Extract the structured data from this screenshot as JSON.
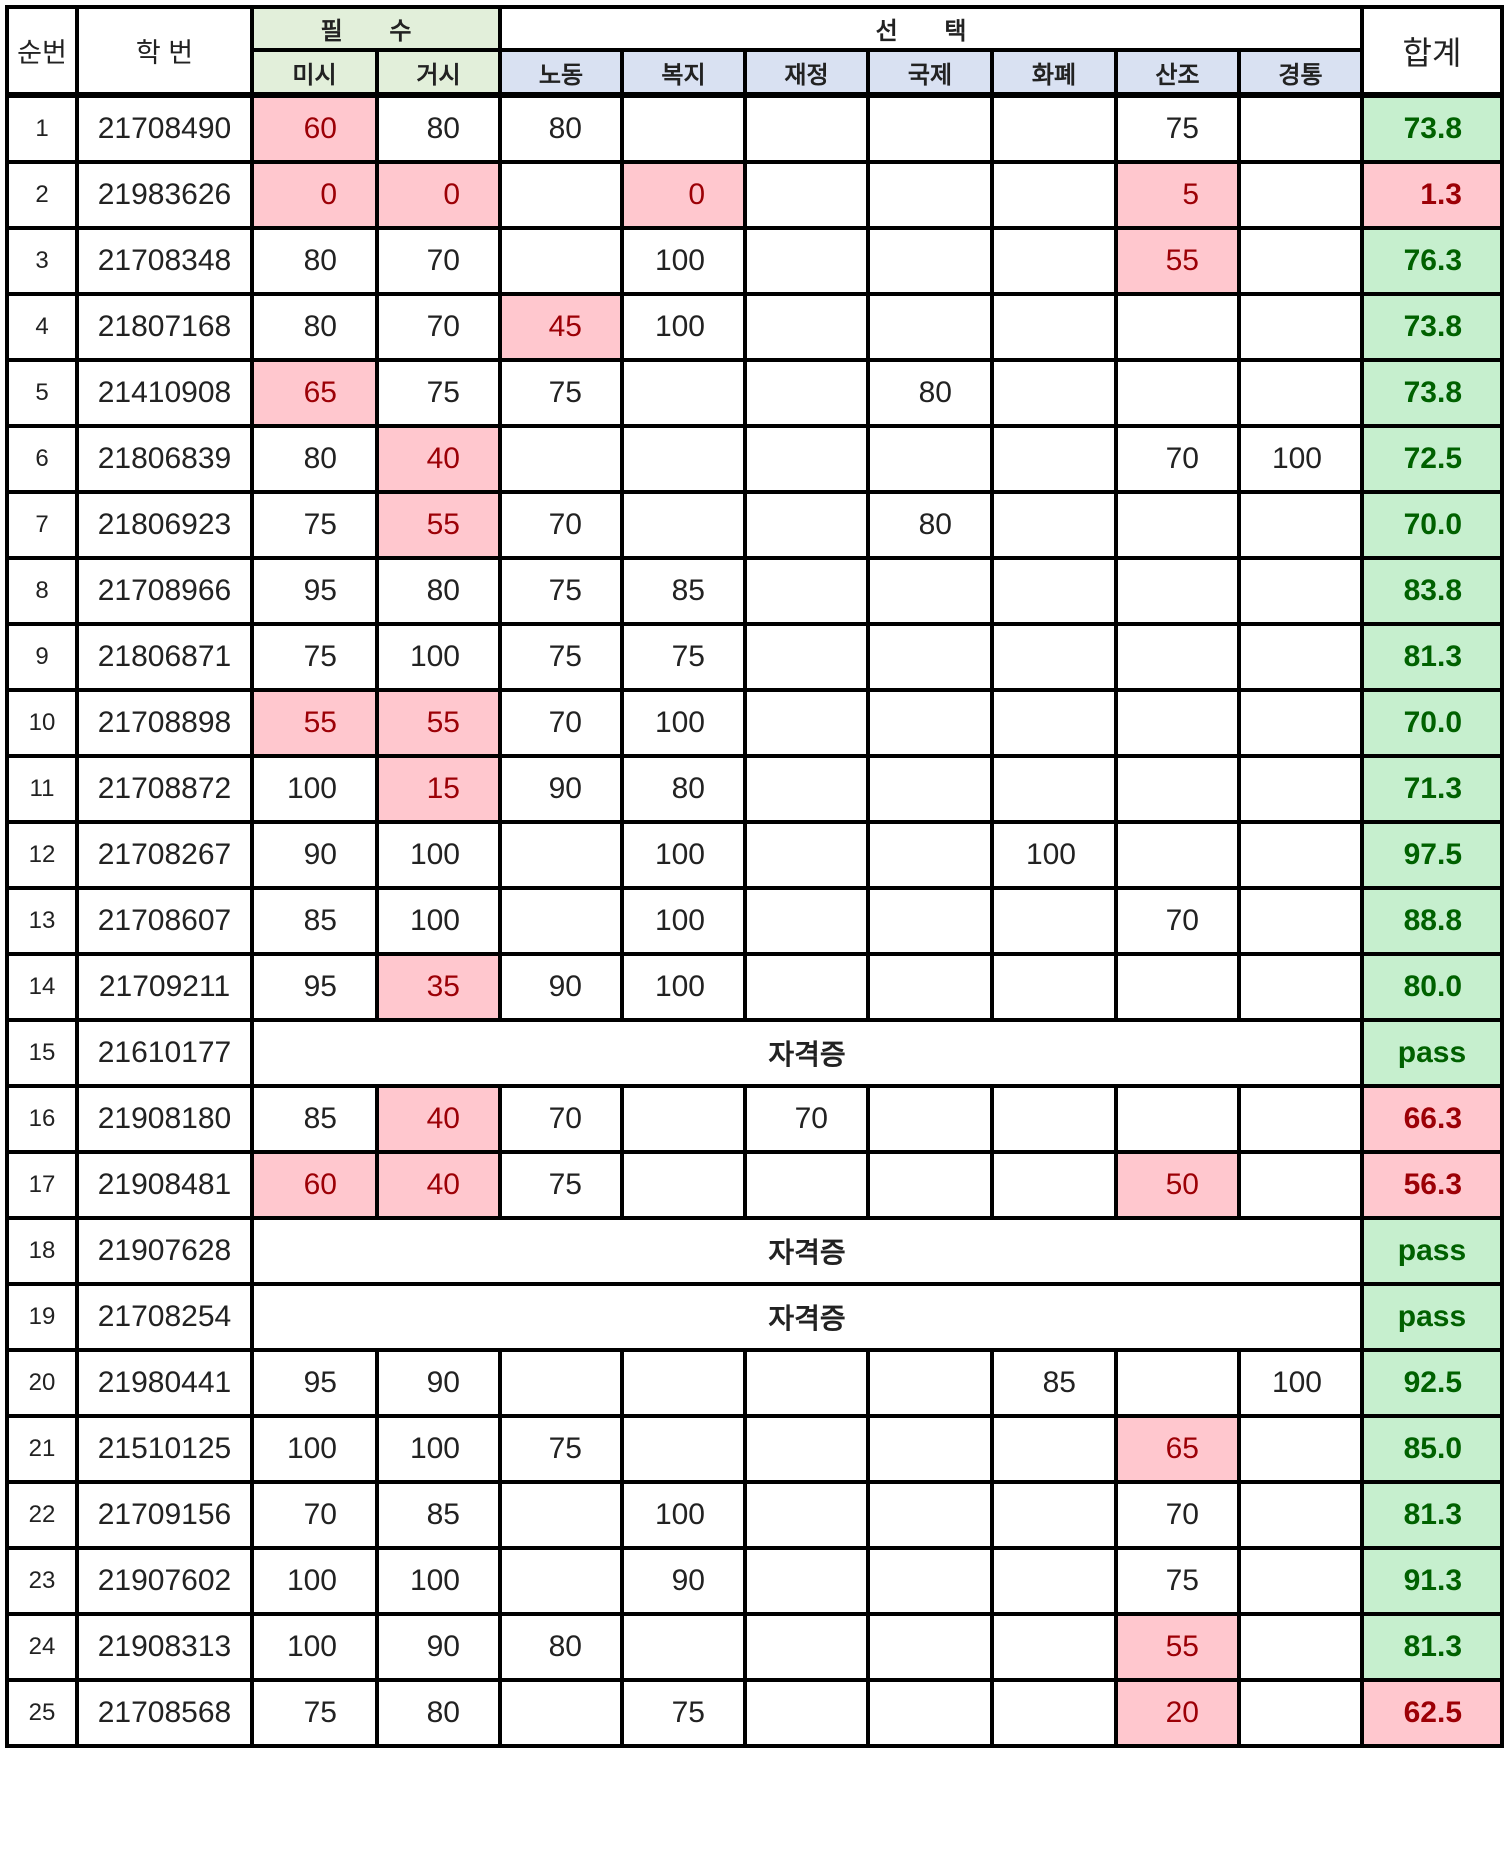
{
  "headers": {
    "no": "순번",
    "student_id": "학 번",
    "required_group": "필 수",
    "elective_group": "선 택",
    "total": "합계",
    "required": [
      "미시",
      "거시"
    ],
    "elective": [
      "노동",
      "복지",
      "재정",
      "국제",
      "화폐",
      "산조",
      "경통"
    ]
  },
  "colors": {
    "header_required": "#e2efda",
    "header_elective": "#d9e1f2",
    "low_bg": "#ffc7ce",
    "low_text": "#9c0006",
    "good_bg": "#c6efce",
    "good_text": "#006100"
  },
  "rows": [
    {
      "no": "1",
      "id": "21708490",
      "scores": [
        "60",
        "80",
        "80",
        "",
        "",
        "",
        "",
        "75",
        ""
      ],
      "low": [
        0
      ],
      "total": "73.8",
      "status": "ok"
    },
    {
      "no": "2",
      "id": "21983626",
      "scores": [
        "0",
        "0",
        "",
        "0",
        "",
        "",
        "",
        "5",
        ""
      ],
      "low": [
        0,
        1,
        3,
        7
      ],
      "total": "1.3",
      "status": "fail"
    },
    {
      "no": "3",
      "id": "21708348",
      "scores": [
        "80",
        "70",
        "",
        "100",
        "",
        "",
        "",
        "55",
        ""
      ],
      "low": [
        7
      ],
      "total": "76.3",
      "status": "ok"
    },
    {
      "no": "4",
      "id": "21807168",
      "scores": [
        "80",
        "70",
        "45",
        "100",
        "",
        "",
        "",
        "",
        ""
      ],
      "low": [
        2
      ],
      "total": "73.8",
      "status": "ok"
    },
    {
      "no": "5",
      "id": "21410908",
      "scores": [
        "65",
        "75",
        "75",
        "",
        "",
        "80",
        "",
        "",
        ""
      ],
      "low": [
        0
      ],
      "total": "73.8",
      "status": "ok"
    },
    {
      "no": "6",
      "id": "21806839",
      "scores": [
        "80",
        "40",
        "",
        "",
        "",
        "",
        "",
        "70",
        "100"
      ],
      "low": [
        1
      ],
      "total": "72.5",
      "status": "ok"
    },
    {
      "no": "7",
      "id": "21806923",
      "scores": [
        "75",
        "55",
        "70",
        "",
        "",
        "80",
        "",
        "",
        ""
      ],
      "low": [
        1
      ],
      "total": "70.0",
      "status": "ok"
    },
    {
      "no": "8",
      "id": "21708966",
      "scores": [
        "95",
        "80",
        "75",
        "85",
        "",
        "",
        "",
        "",
        ""
      ],
      "low": [],
      "total": "83.8",
      "status": "ok"
    },
    {
      "no": "9",
      "id": "21806871",
      "scores": [
        "75",
        "100",
        "75",
        "75",
        "",
        "",
        "",
        "",
        ""
      ],
      "low": [],
      "total": "81.3",
      "status": "ok"
    },
    {
      "no": "10",
      "id": "21708898",
      "scores": [
        "55",
        "55",
        "70",
        "100",
        "",
        "",
        "",
        "",
        ""
      ],
      "low": [
        0,
        1
      ],
      "total": "70.0",
      "status": "ok"
    },
    {
      "no": "11",
      "id": "21708872",
      "scores": [
        "100",
        "15",
        "90",
        "80",
        "",
        "",
        "",
        "",
        ""
      ],
      "low": [
        1
      ],
      "total": "71.3",
      "status": "ok"
    },
    {
      "no": "12",
      "id": "21708267",
      "scores": [
        "90",
        "100",
        "",
        "100",
        "",
        "",
        "100",
        "",
        ""
      ],
      "low": [],
      "total": "97.5",
      "status": "ok"
    },
    {
      "no": "13",
      "id": "21708607",
      "scores": [
        "85",
        "100",
        "",
        "100",
        "",
        "",
        "",
        "70",
        ""
      ],
      "low": [],
      "total": "88.8",
      "status": "ok"
    },
    {
      "no": "14",
      "id": "21709211",
      "scores": [
        "95",
        "35",
        "90",
        "100",
        "",
        "",
        "",
        "",
        ""
      ],
      "low": [
        1
      ],
      "total": "80.0",
      "status": "ok"
    },
    {
      "no": "15",
      "id": "21610177",
      "cert": "자격증",
      "total": "pass",
      "status": "pass"
    },
    {
      "no": "16",
      "id": "21908180",
      "scores": [
        "85",
        "40",
        "70",
        "",
        "70",
        "",
        "",
        "",
        ""
      ],
      "low": [
        1
      ],
      "total": "66.3",
      "status": "fail"
    },
    {
      "no": "17",
      "id": "21908481",
      "scores": [
        "60",
        "40",
        "75",
        "",
        "",
        "",
        "",
        "50",
        ""
      ],
      "low": [
        0,
        1,
        7
      ],
      "total": "56.3",
      "status": "fail"
    },
    {
      "no": "18",
      "id": "21907628",
      "cert": "자격증",
      "total": "pass",
      "status": "pass"
    },
    {
      "no": "19",
      "id": "21708254",
      "cert": "자격증",
      "total": "pass",
      "status": "pass"
    },
    {
      "no": "20",
      "id": "21980441",
      "scores": [
        "95",
        "90",
        "",
        "",
        "",
        "",
        "85",
        "",
        "100"
      ],
      "low": [],
      "total": "92.5",
      "status": "ok"
    },
    {
      "no": "21",
      "id": "21510125",
      "scores": [
        "100",
        "100",
        "75",
        "",
        "",
        "",
        "",
        "65",
        ""
      ],
      "low": [
        7
      ],
      "total": "85.0",
      "status": "ok"
    },
    {
      "no": "22",
      "id": "21709156",
      "scores": [
        "70",
        "85",
        "",
        "100",
        "",
        "",
        "",
        "70",
        ""
      ],
      "low": [],
      "total": "81.3",
      "status": "ok"
    },
    {
      "no": "23",
      "id": "21907602",
      "scores": [
        "100",
        "100",
        "",
        "90",
        "",
        "",
        "",
        "75",
        ""
      ],
      "low": [],
      "total": "91.3",
      "status": "ok"
    },
    {
      "no": "24",
      "id": "21908313",
      "scores": [
        "100",
        "90",
        "80",
        "",
        "",
        "",
        "",
        "55",
        ""
      ],
      "low": [
        7
      ],
      "total": "81.3",
      "status": "ok"
    },
    {
      "no": "25",
      "id": "21708568",
      "scores": [
        "75",
        "80",
        "",
        "75",
        "",
        "",
        "",
        "20",
        ""
      ],
      "low": [
        7
      ],
      "total": "62.5",
      "status": "fail"
    }
  ]
}
